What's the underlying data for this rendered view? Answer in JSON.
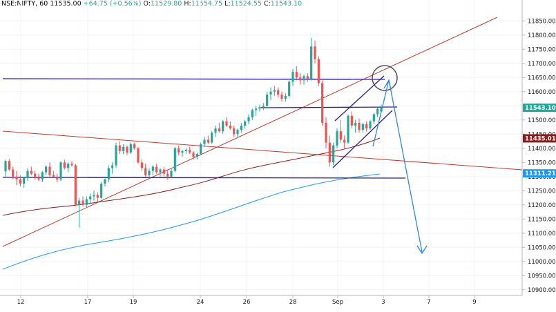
{
  "header": {
    "symbol": "NSE:NIFTY, 60",
    "change": "+64.75 (+0.56%)",
    "o_label": "O:",
    "o_value": "11529.80",
    "h_label": "H:",
    "h_value": "11554.75",
    "l_label": "L:",
    "l_value": "11524.55",
    "c_label": "C:",
    "c_value": "11543.10",
    "last": "11535.00"
  },
  "colors": {
    "up": "#26a69a",
    "down": "#ef5350",
    "purple": "#2c1a8c",
    "red_line": "#c0392b",
    "ma_brown": "#8b1a1a",
    "ma_blue": "#2196f3",
    "arrow": "#2e86de",
    "tag_green": "#26a69a",
    "tag_brown": "#8b1a1a",
    "tag_blue": "#2196f3"
  },
  "chart_data": {
    "type": "candlestick",
    "ylim": [
      10880,
      11880
    ],
    "yticks": [
      "11850.00",
      "11800.00",
      "11750.00",
      "11700.00",
      "11650.00",
      "11600.00",
      "11550.00",
      "11500.00",
      "11450.00",
      "11400.00",
      "11350.00",
      "11300.00",
      "11250.00",
      "11200.00",
      "11150.00",
      "11100.00",
      "11050.00",
      "11000.00",
      "10950.00",
      "10900.00"
    ],
    "xticks": [
      "12",
      "17",
      "19",
      "24",
      "26",
      "28",
      "Sep",
      "3",
      "7",
      "9"
    ],
    "price_tags": [
      {
        "label": "11543.10",
        "value": 11543.1,
        "color_key": "tag_green"
      },
      {
        "label": "11435.01",
        "value": 11435.01,
        "color_key": "tag_brown"
      },
      {
        "label": "11311.21",
        "value": 11311.21,
        "color_key": "tag_blue"
      }
    ],
    "candles": [
      [
        11318,
        11360,
        11300,
        11355
      ],
      [
        11355,
        11362,
        11320,
        11325
      ],
      [
        11325,
        11335,
        11290,
        11300
      ],
      [
        11300,
        11320,
        11270,
        11290
      ],
      [
        11290,
        11305,
        11265,
        11275
      ],
      [
        11275,
        11300,
        11260,
        11295
      ],
      [
        11295,
        11330,
        11285,
        11320
      ],
      [
        11320,
        11335,
        11305,
        11310
      ],
      [
        11310,
        11320,
        11290,
        11300
      ],
      [
        11300,
        11310,
        11285,
        11290
      ],
      [
        11290,
        11320,
        11280,
        11315
      ],
      [
        11315,
        11340,
        11305,
        11335
      ],
      [
        11335,
        11350,
        11300,
        11305
      ],
      [
        11305,
        11320,
        11295,
        11300
      ],
      [
        11300,
        11310,
        11280,
        11290
      ],
      [
        11290,
        11355,
        11285,
        11350
      ],
      [
        11350,
        11360,
        11325,
        11330
      ],
      [
        11330,
        11350,
        11315,
        11345
      ],
      [
        11345,
        11355,
        11335,
        11340
      ],
      [
        11340,
        11345,
        11195,
        11200
      ],
      [
        11200,
        11225,
        11120,
        11215
      ],
      [
        11215,
        11230,
        11195,
        11200
      ],
      [
        11200,
        11230,
        11190,
        11220
      ],
      [
        11220,
        11240,
        11205,
        11230
      ],
      [
        11230,
        11250,
        11215,
        11235
      ],
      [
        11235,
        11245,
        11210,
        11225
      ],
      [
        11225,
        11280,
        11220,
        11275
      ],
      [
        11275,
        11300,
        11265,
        11290
      ],
      [
        11290,
        11340,
        11280,
        11330
      ],
      [
        11330,
        11350,
        11310,
        11340
      ],
      [
        11340,
        11420,
        11330,
        11410
      ],
      [
        11410,
        11425,
        11380,
        11390
      ],
      [
        11390,
        11415,
        11380,
        11405
      ],
      [
        11405,
        11410,
        11375,
        11385
      ],
      [
        11385,
        11420,
        11380,
        11415
      ],
      [
        11415,
        11420,
        11395,
        11400
      ],
      [
        11400,
        11405,
        11345,
        11350
      ],
      [
        11350,
        11360,
        11320,
        11330
      ],
      [
        11330,
        11345,
        11300,
        11305
      ],
      [
        11305,
        11330,
        11290,
        11320
      ],
      [
        11320,
        11340,
        11305,
        11335
      ],
      [
        11335,
        11345,
        11310,
        11315
      ],
      [
        11315,
        11330,
        11300,
        11325
      ],
      [
        11325,
        11335,
        11300,
        11310
      ],
      [
        11310,
        11325,
        11290,
        11300
      ],
      [
        11300,
        11330,
        11295,
        11320
      ],
      [
        11320,
        11405,
        11315,
        11400
      ],
      [
        11400,
        11410,
        11375,
        11385
      ],
      [
        11385,
        11395,
        11370,
        11390
      ],
      [
        11390,
        11400,
        11380,
        11395
      ],
      [
        11395,
        11405,
        11380,
        11385
      ],
      [
        11385,
        11390,
        11360,
        11370
      ],
      [
        11370,
        11385,
        11360,
        11380
      ],
      [
        11380,
        11420,
        11375,
        11415
      ],
      [
        11415,
        11440,
        11405,
        11430
      ],
      [
        11430,
        11445,
        11415,
        11420
      ],
      [
        11420,
        11460,
        11415,
        11455
      ],
      [
        11455,
        11480,
        11440,
        11470
      ],
      [
        11470,
        11490,
        11455,
        11460
      ],
      [
        11460,
        11500,
        11450,
        11495
      ],
      [
        11495,
        11510,
        11475,
        11480
      ],
      [
        11480,
        11495,
        11465,
        11470
      ],
      [
        11470,
        11480,
        11440,
        11450
      ],
      [
        11450,
        11470,
        11435,
        11465
      ],
      [
        11465,
        11490,
        11455,
        11480
      ],
      [
        11480,
        11500,
        11470,
        11495
      ],
      [
        11495,
        11520,
        11485,
        11510
      ],
      [
        11510,
        11540,
        11500,
        11535
      ],
      [
        11535,
        11550,
        11515,
        11540
      ],
      [
        11540,
        11555,
        11530,
        11545
      ],
      [
        11545,
        11560,
        11535,
        11550
      ],
      [
        11550,
        11600,
        11545,
        11590
      ],
      [
        11590,
        11615,
        11570,
        11600
      ],
      [
        11600,
        11620,
        11585,
        11605
      ],
      [
        11605,
        11615,
        11580,
        11590
      ],
      [
        11590,
        11600,
        11565,
        11575
      ],
      [
        11575,
        11595,
        11565,
        11585
      ],
      [
        11585,
        11640,
        11580,
        11635
      ],
      [
        11635,
        11680,
        11620,
        11670
      ],
      [
        11670,
        11690,
        11640,
        11650
      ],
      [
        11650,
        11665,
        11625,
        11640
      ],
      [
        11640,
        11660,
        11625,
        11655
      ],
      [
        11655,
        11665,
        11635,
        11645
      ],
      [
        11645,
        11790,
        11640,
        11760
      ],
      [
        11760,
        11780,
        11700,
        11715
      ],
      [
        11715,
        11725,
        11620,
        11630
      ],
      [
        11630,
        11640,
        11480,
        11490
      ],
      [
        11490,
        11510,
        11400,
        11420
      ],
      [
        11420,
        11445,
        11335,
        11350
      ],
      [
        11350,
        11420,
        11340,
        11410
      ],
      [
        11410,
        11470,
        11400,
        11460
      ],
      [
        11460,
        11500,
        11420,
        11430
      ],
      [
        11430,
        11445,
        11400,
        11420
      ],
      [
        11420,
        11520,
        11415,
        11515
      ],
      [
        11515,
        11530,
        11470,
        11480
      ],
      [
        11480,
        11500,
        11455,
        11490
      ],
      [
        11490,
        11505,
        11455,
        11465
      ],
      [
        11465,
        11490,
        11455,
        11485
      ],
      [
        11485,
        11495,
        11460,
        11470
      ],
      [
        11470,
        11500,
        11465,
        11495
      ],
      [
        11495,
        11525,
        11485,
        11520
      ],
      [
        11520,
        11545,
        11510,
        11540
      ],
      [
        11529.8,
        11554.75,
        11524.55,
        11543.1
      ]
    ]
  }
}
